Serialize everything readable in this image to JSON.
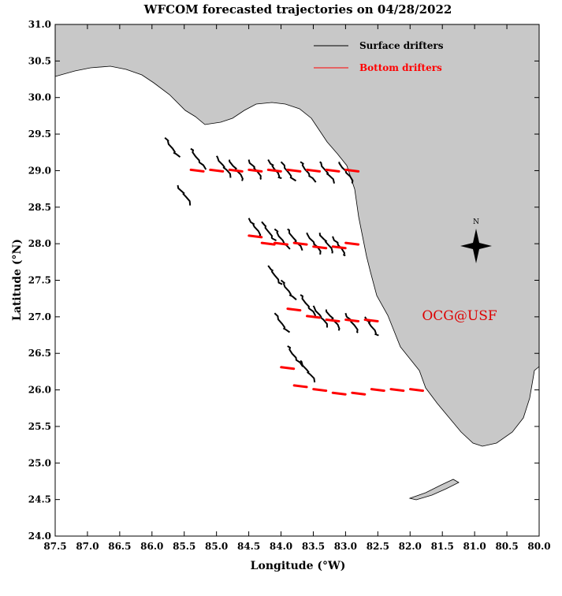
{
  "title": "WFCOM forecasted trajectories on 04/28/2022",
  "xlabel": "Longitude (°W)",
  "ylabel": "Latitude (°N)",
  "credit": "OCG@USF",
  "compass_label": "N",
  "legend": [
    {
      "label": "Surface drifters",
      "color": "#000000"
    },
    {
      "label": "Bottom drifters",
      "color": "#ff0000"
    }
  ],
  "colors": {
    "land": "#c8c8c8",
    "surface": "#000000",
    "bottom": "#ff0000",
    "credit": "#dd0000"
  },
  "axes": {
    "x_ticks": [
      "87.5",
      "87.0",
      "86.5",
      "86.0",
      "85.5",
      "85.0",
      "84.5",
      "84.0",
      "83.5",
      "83.0",
      "82.5",
      "82.0",
      "81.5",
      "81.0",
      "80.5",
      "80.0"
    ],
    "y_ticks": [
      "31.0",
      "30.5",
      "30.0",
      "29.5",
      "29.0",
      "28.5",
      "28.0",
      "27.5",
      "27.0",
      "26.5",
      "26.0",
      "25.5",
      "25.0",
      "24.5",
      "24.0"
    ],
    "xlim": [
      -87.5,
      -80.0
    ],
    "ylim": [
      24.0,
      31.0
    ]
  },
  "chart_data": {
    "type": "scatter",
    "title": "WFCOM forecasted trajectories on 04/28/2022",
    "xlabel": "Longitude (°W)",
    "ylabel": "Latitude (°N)",
    "xlim": [
      -87.5,
      -80.0
    ],
    "ylim": [
      24.0,
      31.0
    ],
    "series": [
      {
        "name": "Surface drifters",
        "points": [
          [
            -85.8,
            29.45
          ],
          [
            -85.4,
            29.3
          ],
          [
            -85.0,
            29.2
          ],
          [
            -84.8,
            29.15
          ],
          [
            -84.5,
            29.15
          ],
          [
            -84.2,
            29.15
          ],
          [
            -84.0,
            29.12
          ],
          [
            -83.7,
            29.12
          ],
          [
            -83.4,
            29.12
          ],
          [
            -83.1,
            29.12
          ],
          [
            -85.6,
            28.8
          ],
          [
            -84.5,
            28.35
          ],
          [
            -84.3,
            28.3
          ],
          [
            -84.1,
            28.2
          ],
          [
            -83.9,
            28.2
          ],
          [
            -83.6,
            28.15
          ],
          [
            -83.4,
            28.15
          ],
          [
            -83.2,
            28.1
          ],
          [
            -84.2,
            27.7
          ],
          [
            -84.0,
            27.5
          ],
          [
            -83.7,
            27.3
          ],
          [
            -83.5,
            27.15
          ],
          [
            -83.3,
            27.1
          ],
          [
            -83.0,
            27.05
          ],
          [
            -82.7,
            27.0
          ],
          [
            -84.1,
            27.05
          ],
          [
            -83.9,
            26.6
          ],
          [
            -83.7,
            26.4
          ]
        ]
      },
      {
        "name": "Bottom drifters",
        "points": [
          [
            -85.3,
            29.0
          ],
          [
            -85.0,
            29.0
          ],
          [
            -84.7,
            29.0
          ],
          [
            -84.4,
            29.0
          ],
          [
            -84.1,
            29.0
          ],
          [
            -83.8,
            29.0
          ],
          [
            -83.5,
            29.0
          ],
          [
            -83.2,
            29.0
          ],
          [
            -82.9,
            29.0
          ],
          [
            -84.4,
            28.1
          ],
          [
            -84.2,
            28.0
          ],
          [
            -84.0,
            28.0
          ],
          [
            -83.7,
            28.0
          ],
          [
            -83.4,
            27.95
          ],
          [
            -83.1,
            27.95
          ],
          [
            -82.9,
            28.0
          ],
          [
            -83.8,
            27.1
          ],
          [
            -83.5,
            27.0
          ],
          [
            -83.2,
            26.95
          ],
          [
            -82.9,
            26.95
          ],
          [
            -82.6,
            26.95
          ],
          [
            -83.9,
            26.3
          ],
          [
            -83.7,
            26.05
          ],
          [
            -83.4,
            26.0
          ],
          [
            -83.1,
            25.95
          ],
          [
            -82.8,
            25.95
          ],
          [
            -82.5,
            26.0
          ],
          [
            -82.2,
            26.0
          ],
          [
            -81.9,
            26.0
          ]
        ]
      }
    ]
  }
}
